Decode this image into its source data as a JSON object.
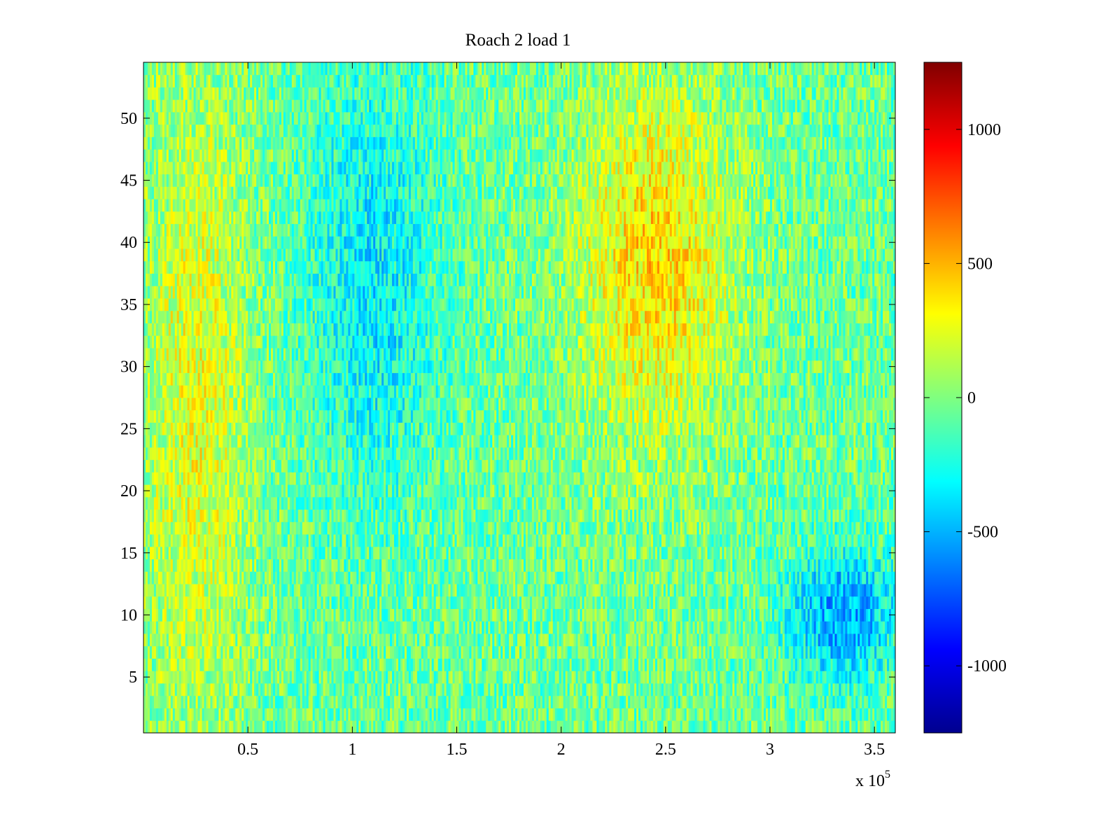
{
  "chart_data": {
    "type": "heatmap",
    "title": "Roach 2 load 1",
    "xlabel": "",
    "ylabel": "",
    "x_exponent_label": {
      "base": "x 10",
      "exp": "5"
    },
    "xlim": [
      0,
      3.6
    ],
    "ylim": [
      0.5,
      54.5
    ],
    "x_ticks": [
      0.5,
      1,
      1.5,
      2,
      2.5,
      3,
      3.5
    ],
    "x_tick_labels": [
      "0.5",
      "1",
      "1.5",
      "2",
      "2.5",
      "3",
      "3.5"
    ],
    "y_ticks": [
      5,
      10,
      15,
      20,
      25,
      30,
      35,
      40,
      45,
      50
    ],
    "y_tick_labels": [
      "5",
      "10",
      "15",
      "20",
      "25",
      "30",
      "35",
      "40",
      "45",
      "50"
    ],
    "rows": 54,
    "colormap": "jet",
    "clim": [
      -1250,
      1250
    ],
    "colorbar": {
      "ticks": [
        1000,
        500,
        0,
        -500,
        -1000
      ],
      "tick_labels": [
        "1000",
        "500",
        "0",
        "-500",
        "-1000"
      ]
    },
    "approximate_pattern": {
      "description_regions": [
        {
          "x_range": [
            0,
            0.5
          ],
          "y_range": [
            1,
            54
          ],
          "typical_value": 250
        },
        {
          "x_range": [
            0.8,
            1.4
          ],
          "y_range": [
            20,
            54
          ],
          "typical_value": -350
        },
        {
          "x_range": [
            2.1,
            2.8
          ],
          "y_range": [
            25,
            52
          ],
          "typical_value": 400
        },
        {
          "x_range": [
            3.1,
            3.6
          ],
          "y_range": [
            5,
            15
          ],
          "typical_value": -550
        }
      ],
      "background_value": -50
    },
    "grid": false
  }
}
